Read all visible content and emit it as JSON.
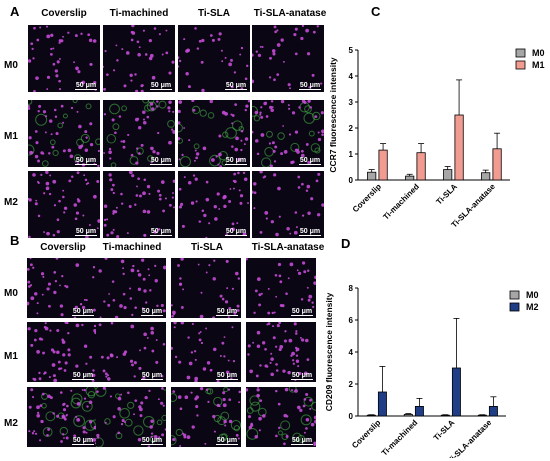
{
  "panels": {
    "A": {
      "letter": "A",
      "columns": [
        "Coverslip",
        "Ti-machined",
        "Ti-SLA",
        "Ti-SLA-anatase"
      ],
      "rows": [
        "M0",
        "M1",
        "M2"
      ],
      "scale_bar": "50 μm"
    },
    "B": {
      "letter": "B",
      "columns": [
        "Coverslip",
        "Ti-machined",
        "Ti-SLA",
        "Ti-SLA-anatase"
      ],
      "rows": [
        "M0",
        "M1",
        "M2"
      ],
      "scale_bar": "50 μm"
    },
    "C": {
      "letter": "C"
    },
    "D": {
      "letter": "D"
    }
  },
  "colors": {
    "tile_background": "#0b0613",
    "nucleus_magenta": "#c44bd8",
    "green_marker": "#49c24a",
    "m0_gray": "#a6a6a6",
    "m1_salmon": "#f19b91",
    "m2_navy": "#1f3e86"
  },
  "chart_data": [
    {
      "type": "bar",
      "panel": "C",
      "ylabel": "CCR7 fluorescence intensity",
      "ylim": [
        0,
        5
      ],
      "yticks": [
        0,
        1,
        2,
        3,
        4,
        5
      ],
      "categories": [
        "Coverslip",
        "Ti-machined",
        "Ti-SLA",
        "Ti-SLA-anatase"
      ],
      "series": [
        {
          "name": "M0",
          "color": "#a6a6a6",
          "values": [
            0.3,
            0.15,
            0.4,
            0.28
          ],
          "errors": [
            0.1,
            0.07,
            0.12,
            0.1
          ]
        },
        {
          "name": "M1",
          "color": "#f19b91",
          "values": [
            1.15,
            1.05,
            2.5,
            1.2
          ],
          "errors": [
            0.25,
            0.35,
            1.35,
            0.6
          ]
        }
      ],
      "legend": "top-right"
    },
    {
      "type": "bar",
      "panel": "D",
      "ylabel": "CD209 fluorescence intensity",
      "ylim": [
        0,
        8
      ],
      "yticks": [
        0,
        2,
        4,
        6,
        8
      ],
      "categories": [
        "Coverslip",
        "Ti-machined",
        "Ti-SLA",
        "Ti-SLA-anatase"
      ],
      "series": [
        {
          "name": "M0",
          "color": "#a6a6a6",
          "values": [
            0.05,
            0.1,
            0.05,
            0.05
          ],
          "errors": [
            0.03,
            0.05,
            0.03,
            0.03
          ]
        },
        {
          "name": "M2",
          "color": "#1f3e86",
          "values": [
            1.5,
            0.6,
            3.0,
            0.6
          ],
          "errors": [
            1.6,
            0.5,
            3.1,
            0.6
          ]
        }
      ],
      "legend": "top-right"
    }
  ]
}
